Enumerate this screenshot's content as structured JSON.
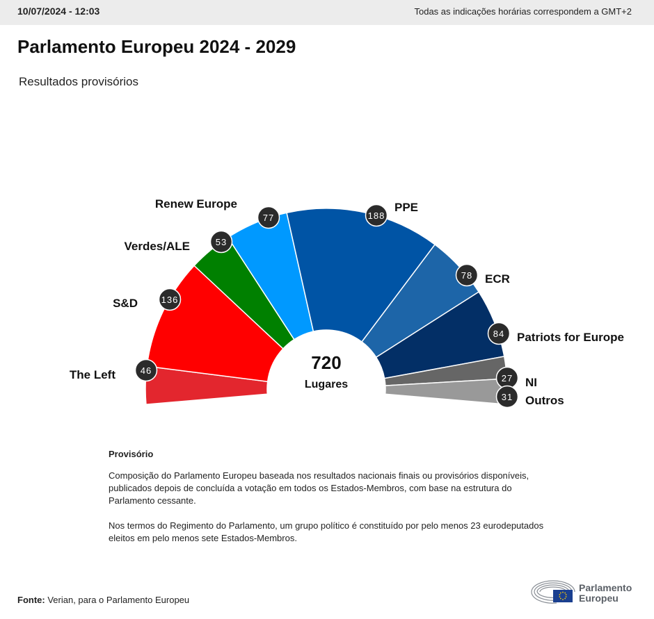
{
  "header": {
    "date": "10/07/2024 - 12:03",
    "timezone_note": "Todas as indicações horárias correspondem a GMT+2"
  },
  "title": "Parlamento Europeu 2024 - 2029",
  "subtitle": "Resultados provisórios",
  "chart_data": {
    "type": "pie",
    "subtype": "hemicycle",
    "total": "720",
    "total_label": "Lugares",
    "slices": [
      {
        "name": "The Left",
        "value": 46,
        "color": "#e3262e"
      },
      {
        "name": "S&D",
        "value": 136,
        "color": "#ff0000"
      },
      {
        "name": "Verdes/ALE",
        "value": 53,
        "color": "#008000"
      },
      {
        "name": "Renew Europe",
        "value": 77,
        "color": "#0099ff"
      },
      {
        "name": "PPE",
        "value": 188,
        "color": "#0054a5"
      },
      {
        "name": "ECR",
        "value": 78,
        "color": "#1d65a8"
      },
      {
        "name": "Patriots for Europe",
        "value": 84,
        "color": "#032f66"
      },
      {
        "name": "NI",
        "value": 27,
        "color": "#666666"
      },
      {
        "name": "Outros",
        "value": 31,
        "color": "#999999"
      }
    ],
    "badge_color": "#2b2b2b"
  },
  "notes": {
    "title": "Provisório",
    "paragraph1": "Composição do Parlamento Europeu baseada nos resultados nacionais finais ou provisórios disponíveis, publicados depois de concluída a votação em todos os Estados-Membros, com base na estrutura do Parlamento cessante.",
    "paragraph2": "Nos termos do Regimento do Parlamento, um grupo político é constituído por pelo menos 23 eurodeputados eleitos em pelo menos sete Estados-Membros."
  },
  "source": {
    "label": "Fonte:",
    "text": " Verian, para o Parlamento Europeu"
  },
  "logo": {
    "line1": "Parlamento",
    "line2": "Europeu",
    "icon": "european-parliament-hemicycle-logo"
  }
}
